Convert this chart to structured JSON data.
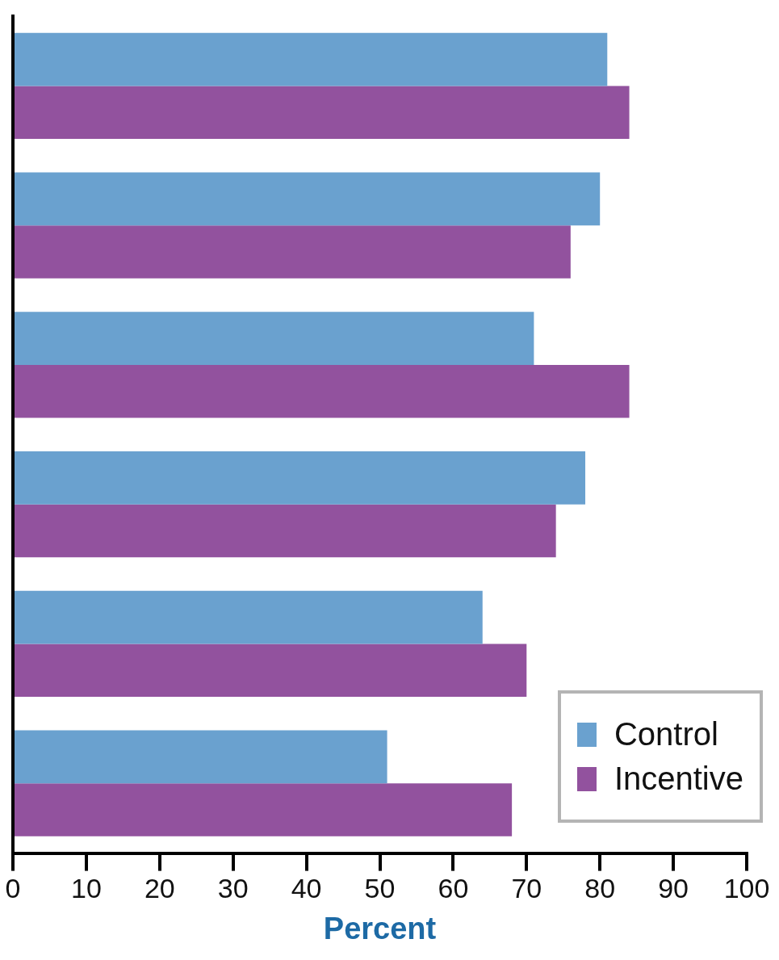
{
  "chart_data": {
    "type": "bar",
    "orientation": "horizontal",
    "xlabel": "Percent",
    "categories": [
      null,
      null,
      null,
      null,
      null,
      null
    ],
    "series": [
      {
        "name": "Control",
        "color": "#6aa1cf",
        "values": [
          81,
          80,
          71,
          78,
          64,
          51
        ]
      },
      {
        "name": "Incentive",
        "color": "#92529e",
        "values": [
          84,
          76,
          84,
          74,
          70,
          68
        ]
      }
    ],
    "xlim": [
      0,
      100
    ],
    "xticks": [
      0,
      10,
      20,
      30,
      40,
      50,
      60,
      70,
      80,
      90,
      100
    ],
    "grid": false,
    "legend": "bottom right"
  }
}
